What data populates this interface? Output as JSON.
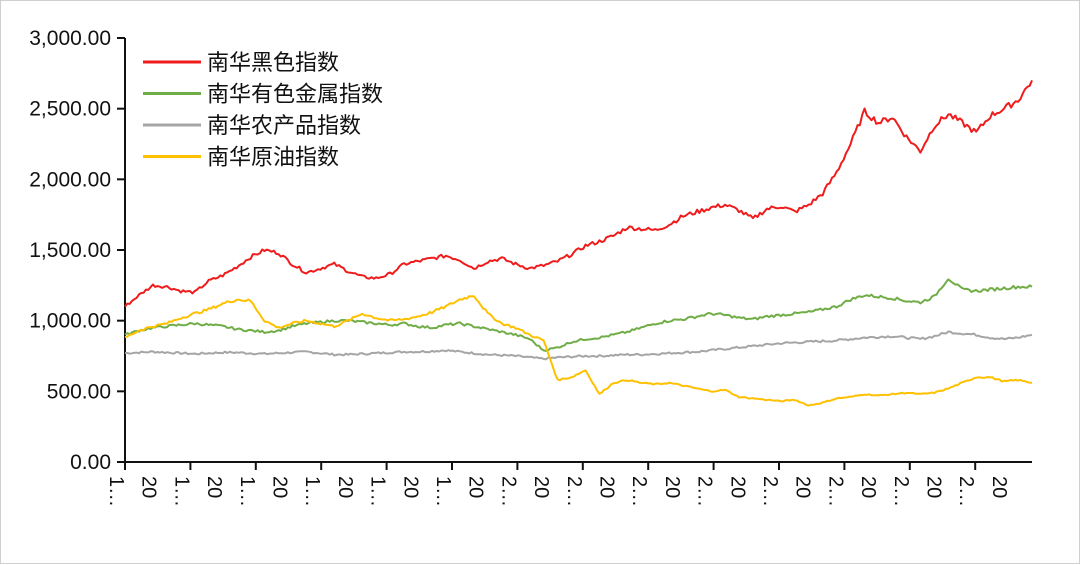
{
  "chart_data": {
    "type": "line",
    "ylim": [
      0,
      3000
    ],
    "y_ticks": [
      "0.00",
      "500.00",
      "1,000.00",
      "1,500.00",
      "2,000.00",
      "2,500.00",
      "3,000.00"
    ],
    "x_tick_labels": [
      "1…",
      "20",
      "1…",
      "20",
      "1…",
      "20",
      "1…",
      "20",
      "1…",
      "20",
      "1…",
      "20",
      "2…",
      "20",
      "2…",
      "20",
      "2…",
      "20",
      "2…",
      "20",
      "2…",
      "20",
      "2…",
      "20",
      "2…",
      "20",
      "2…",
      "20"
    ],
    "legend_position": "top-left",
    "grid": false,
    "series": [
      {
        "name": "南华黑色指数",
        "color": "#ee1c1c",
        "values": [
          1100,
          1180,
          1250,
          1240,
          1210,
          1200,
          1280,
          1320,
          1380,
          1450,
          1500,
          1480,
          1400,
          1340,
          1370,
          1400,
          1350,
          1310,
          1300,
          1330,
          1400,
          1420,
          1440,
          1460,
          1430,
          1370,
          1420,
          1440,
          1400,
          1370,
          1390,
          1420,
          1470,
          1530,
          1560,
          1600,
          1660,
          1650,
          1640,
          1680,
          1740,
          1770,
          1800,
          1820,
          1780,
          1720,
          1790,
          1810,
          1770,
          1820,
          1900,
          2050,
          2250,
          2480,
          2400,
          2440,
          2300,
          2200,
          2380,
          2460,
          2400,
          2330,
          2450,
          2500,
          2560,
          2700
        ]
      },
      {
        "name": "南华有色金属指数",
        "color": "#70ad47",
        "values": [
          900,
          930,
          950,
          960,
          970,
          980,
          970,
          960,
          940,
          930,
          920,
          930,
          960,
          980,
          990,
          1000,
          1000,
          990,
          980,
          970,
          980,
          960,
          950,
          970,
          980,
          960,
          940,
          920,
          900,
          870,
          790,
          810,
          850,
          870,
          880,
          900,
          920,
          950,
          980,
          1000,
          1010,
          1030,
          1050,
          1040,
          1020,
          1010,
          1030,
          1040,
          1050,
          1060,
          1080,
          1100,
          1150,
          1180,
          1170,
          1160,
          1140,
          1130,
          1170,
          1300,
          1220,
          1210,
          1220,
          1230,
          1240,
          1240
        ]
      },
      {
        "name": "南华农产品指数",
        "color": "#a5a5a5",
        "values": [
          770,
          775,
          780,
          775,
          770,
          765,
          770,
          775,
          775,
          770,
          765,
          770,
          775,
          780,
          770,
          760,
          760,
          765,
          770,
          775,
          780,
          780,
          785,
          790,
          780,
          770,
          760,
          755,
          750,
          740,
          730,
          740,
          745,
          750,
          750,
          755,
          760,
          760,
          765,
          770,
          775,
          780,
          790,
          800,
          810,
          820,
          830,
          840,
          845,
          850,
          855,
          860,
          870,
          880,
          885,
          890,
          880,
          870,
          890,
          920,
          910,
          900,
          880,
          870,
          880,
          900
        ]
      },
      {
        "name": "南华原油指数",
        "color": "#ffc000",
        "values": [
          880,
          930,
          960,
          980,
          1020,
          1050,
          1080,
          1120,
          1150,
          1140,
          1000,
          950,
          980,
          1000,
          980,
          960,
          1000,
          1050,
          1020,
          1000,
          1010,
          1030,
          1060,
          1100,
          1150,
          1180,
          1050,
          980,
          950,
          900,
          860,
          580,
          600,
          650,
          480,
          560,
          580,
          560,
          550,
          560,
          540,
          520,
          500,
          510,
          460,
          450,
          440,
          430,
          440,
          400,
          420,
          450,
          460,
          480,
          470,
          480,
          490,
          480,
          490,
          520,
          560,
          600,
          600,
          570,
          580,
          560
        ]
      }
    ]
  }
}
